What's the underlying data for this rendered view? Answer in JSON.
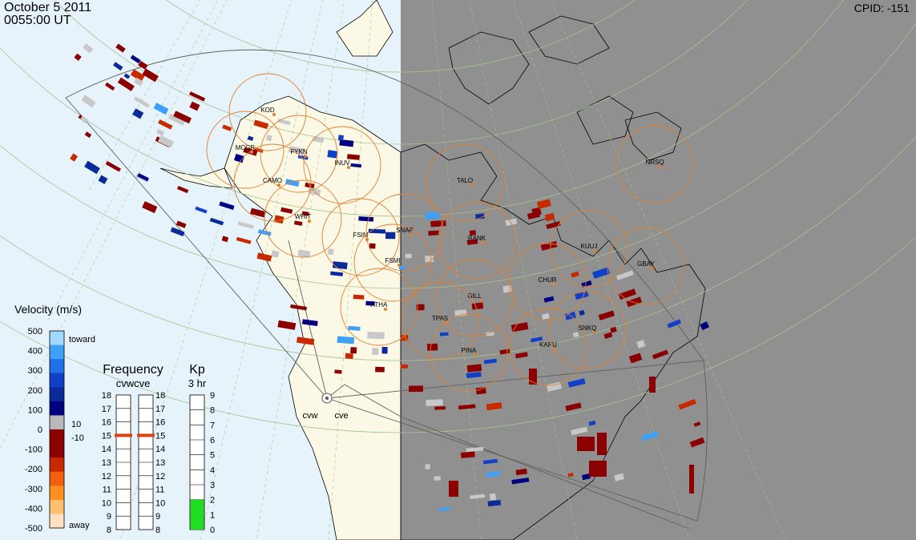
{
  "header": {
    "date": "October  5 2011",
    "time": "0055:00 UT",
    "cpid": "CPID:  -151"
  },
  "colors": {
    "day_ocean": "#e6f3fb",
    "day_land": "#fbf8e6",
    "night": "#909090",
    "grid": "#a6c48a",
    "station_circle": "#e08030",
    "fov": "#606060",
    "ground_scatter": "#c8c8c8",
    "kp_bar": "#22dd22"
  },
  "stations": [
    {
      "code": "KOD"
    },
    {
      "code": "MCGR"
    },
    {
      "code": "FYKN"
    },
    {
      "code": "INUV"
    },
    {
      "code": "CAMO"
    },
    {
      "code": "WHIT"
    },
    {
      "code": "FSIM"
    },
    {
      "code": "SNAP"
    },
    {
      "code": "FSMI"
    },
    {
      "code": "RANK"
    },
    {
      "code": "TALO"
    },
    {
      "code": "NRSQ"
    },
    {
      "code": "KUUJ"
    },
    {
      "code": "GBAY"
    },
    {
      "code": "CHUR"
    },
    {
      "code": "GILL"
    },
    {
      "code": "ATHA"
    },
    {
      "code": "TPAS"
    },
    {
      "code": "PINA"
    },
    {
      "code": "KAPU"
    },
    {
      "code": "SNKQ"
    }
  ],
  "radars": {
    "west": "cvw",
    "east": "cve"
  },
  "velocity_scale": {
    "title": "Velocity (m/s)",
    "ticks": [
      "500",
      "400",
      "300",
      "200",
      "100",
      "0",
      "-100",
      "-200",
      "-300",
      "-400",
      "-500"
    ],
    "toward": "toward",
    "away": "away",
    "threshold_pos": "10",
    "threshold_neg": "-10",
    "colors": [
      "#ffe0c0",
      "#ffc070",
      "#ff9020",
      "#f06010",
      "#c82a00",
      "#8b0000",
      "#8b0000",
      "#b8b8b8",
      "#000080",
      "#0a2a9a",
      "#1040c8",
      "#2070e8",
      "#40a0f8",
      "#a0d8ff"
    ]
  },
  "frequency": {
    "title": "Frequency",
    "subtitle": "cvwcve",
    "ticks": [
      "18",
      "17",
      "16",
      "15",
      "14",
      "13",
      "12",
      "11",
      "10",
      "9",
      "8"
    ],
    "cvw_value": 15,
    "cve_value": 15
  },
  "kp": {
    "title": "Kp",
    "subtitle": "3 hr",
    "ticks": [
      "9",
      "8",
      "7",
      "6",
      "5",
      "4",
      "3",
      "2",
      "1",
      "0"
    ],
    "value": 2
  }
}
